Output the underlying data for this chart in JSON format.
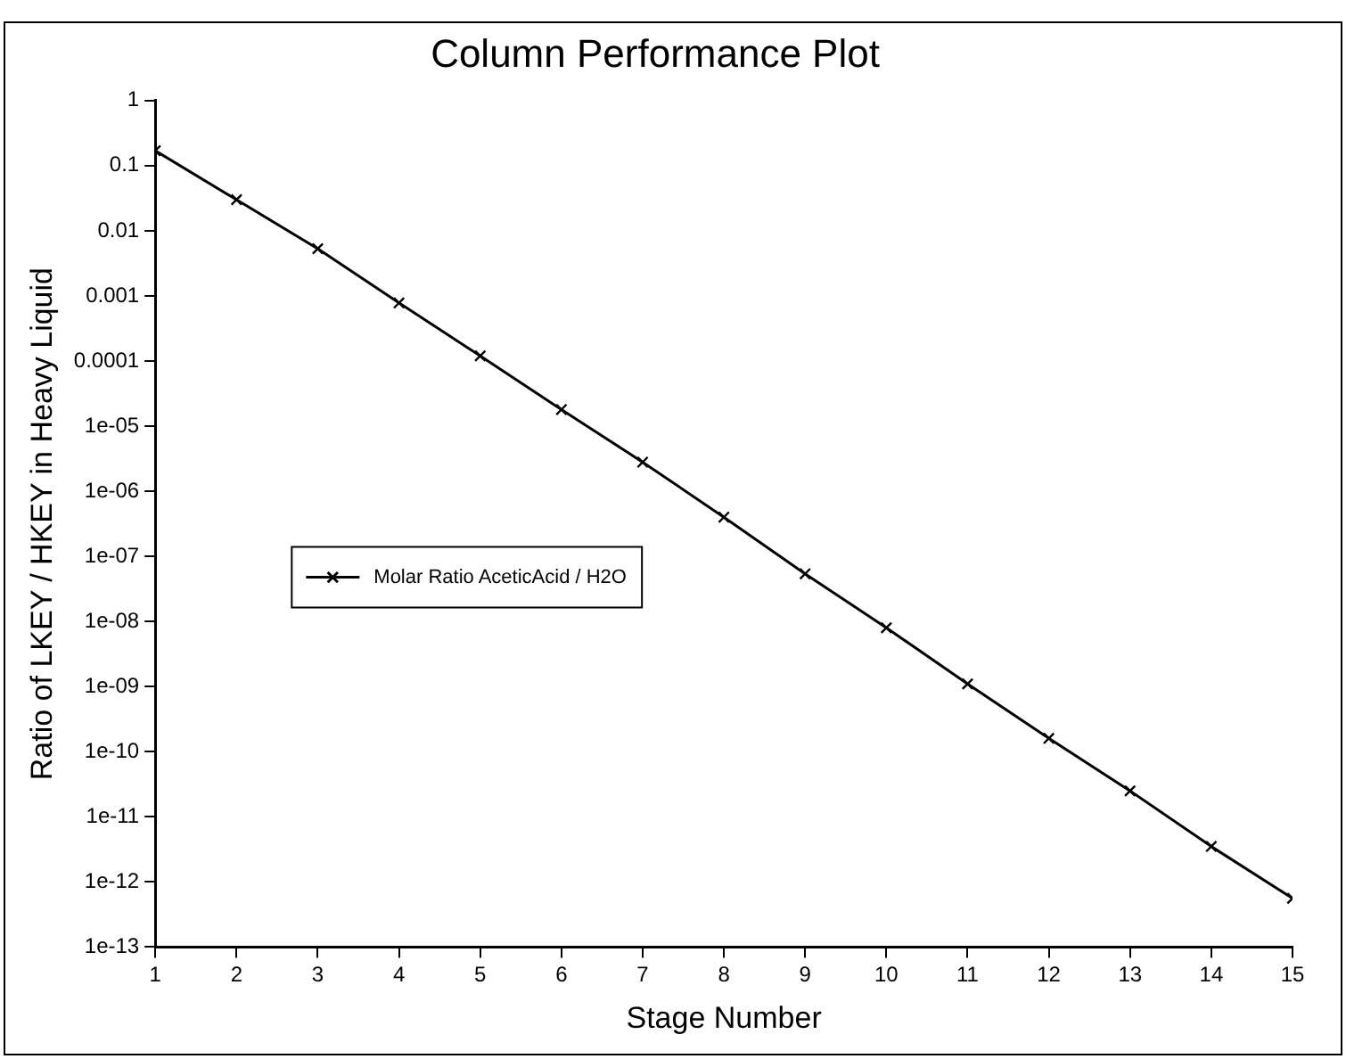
{
  "chart_data": {
    "type": "line",
    "title": "Column Performance Plot",
    "xlabel": "Stage Number",
    "ylabel": "Ratio of LKEY / HKEY in Heavy Liquid",
    "x": [
      1,
      2,
      3,
      4,
      5,
      6,
      7,
      8,
      9,
      10,
      11,
      12,
      13,
      14,
      15
    ],
    "series": [
      {
        "name": "Molar Ratio AceticAcid / H2O",
        "color": "#000000",
        "values": [
          0.17,
          0.03,
          0.0053,
          0.00078,
          0.00012,
          1.8e-05,
          2.8e-06,
          4e-07,
          5.4e-08,
          8e-09,
          1.1e-09,
          1.6e-10,
          2.5e-11,
          3.5e-12,
          5.6e-13
        ]
      }
    ],
    "log": "y",
    "xlim": [
      1,
      15
    ],
    "xticks": [
      1,
      2,
      3,
      4,
      5,
      6,
      7,
      8,
      9,
      10,
      11,
      12,
      13,
      14,
      15
    ],
    "ylim": [
      1e-13,
      1
    ],
    "yticks": [
      1,
      0.1,
      0.01,
      0.001,
      0.0001,
      {
        "value": 1e-05,
        "label": "1e-05"
      },
      {
        "value": 1e-06,
        "label": "1e-06"
      },
      {
        "value": 1e-07,
        "label": "1e-07"
      },
      {
        "value": 1e-08,
        "label": "1e-08"
      },
      {
        "value": 1e-09,
        "label": "1e-09"
      },
      {
        "value": 1e-10,
        "label": "1e-10"
      },
      {
        "value": 1e-11,
        "label": "1e-11"
      },
      {
        "value": 1e-12,
        "label": "1e-12"
      },
      {
        "value": 1e-13,
        "label": "1e-13"
      }
    ],
    "grid": false,
    "legend": "center left",
    "marker": "cross",
    "line_style": "solid"
  }
}
